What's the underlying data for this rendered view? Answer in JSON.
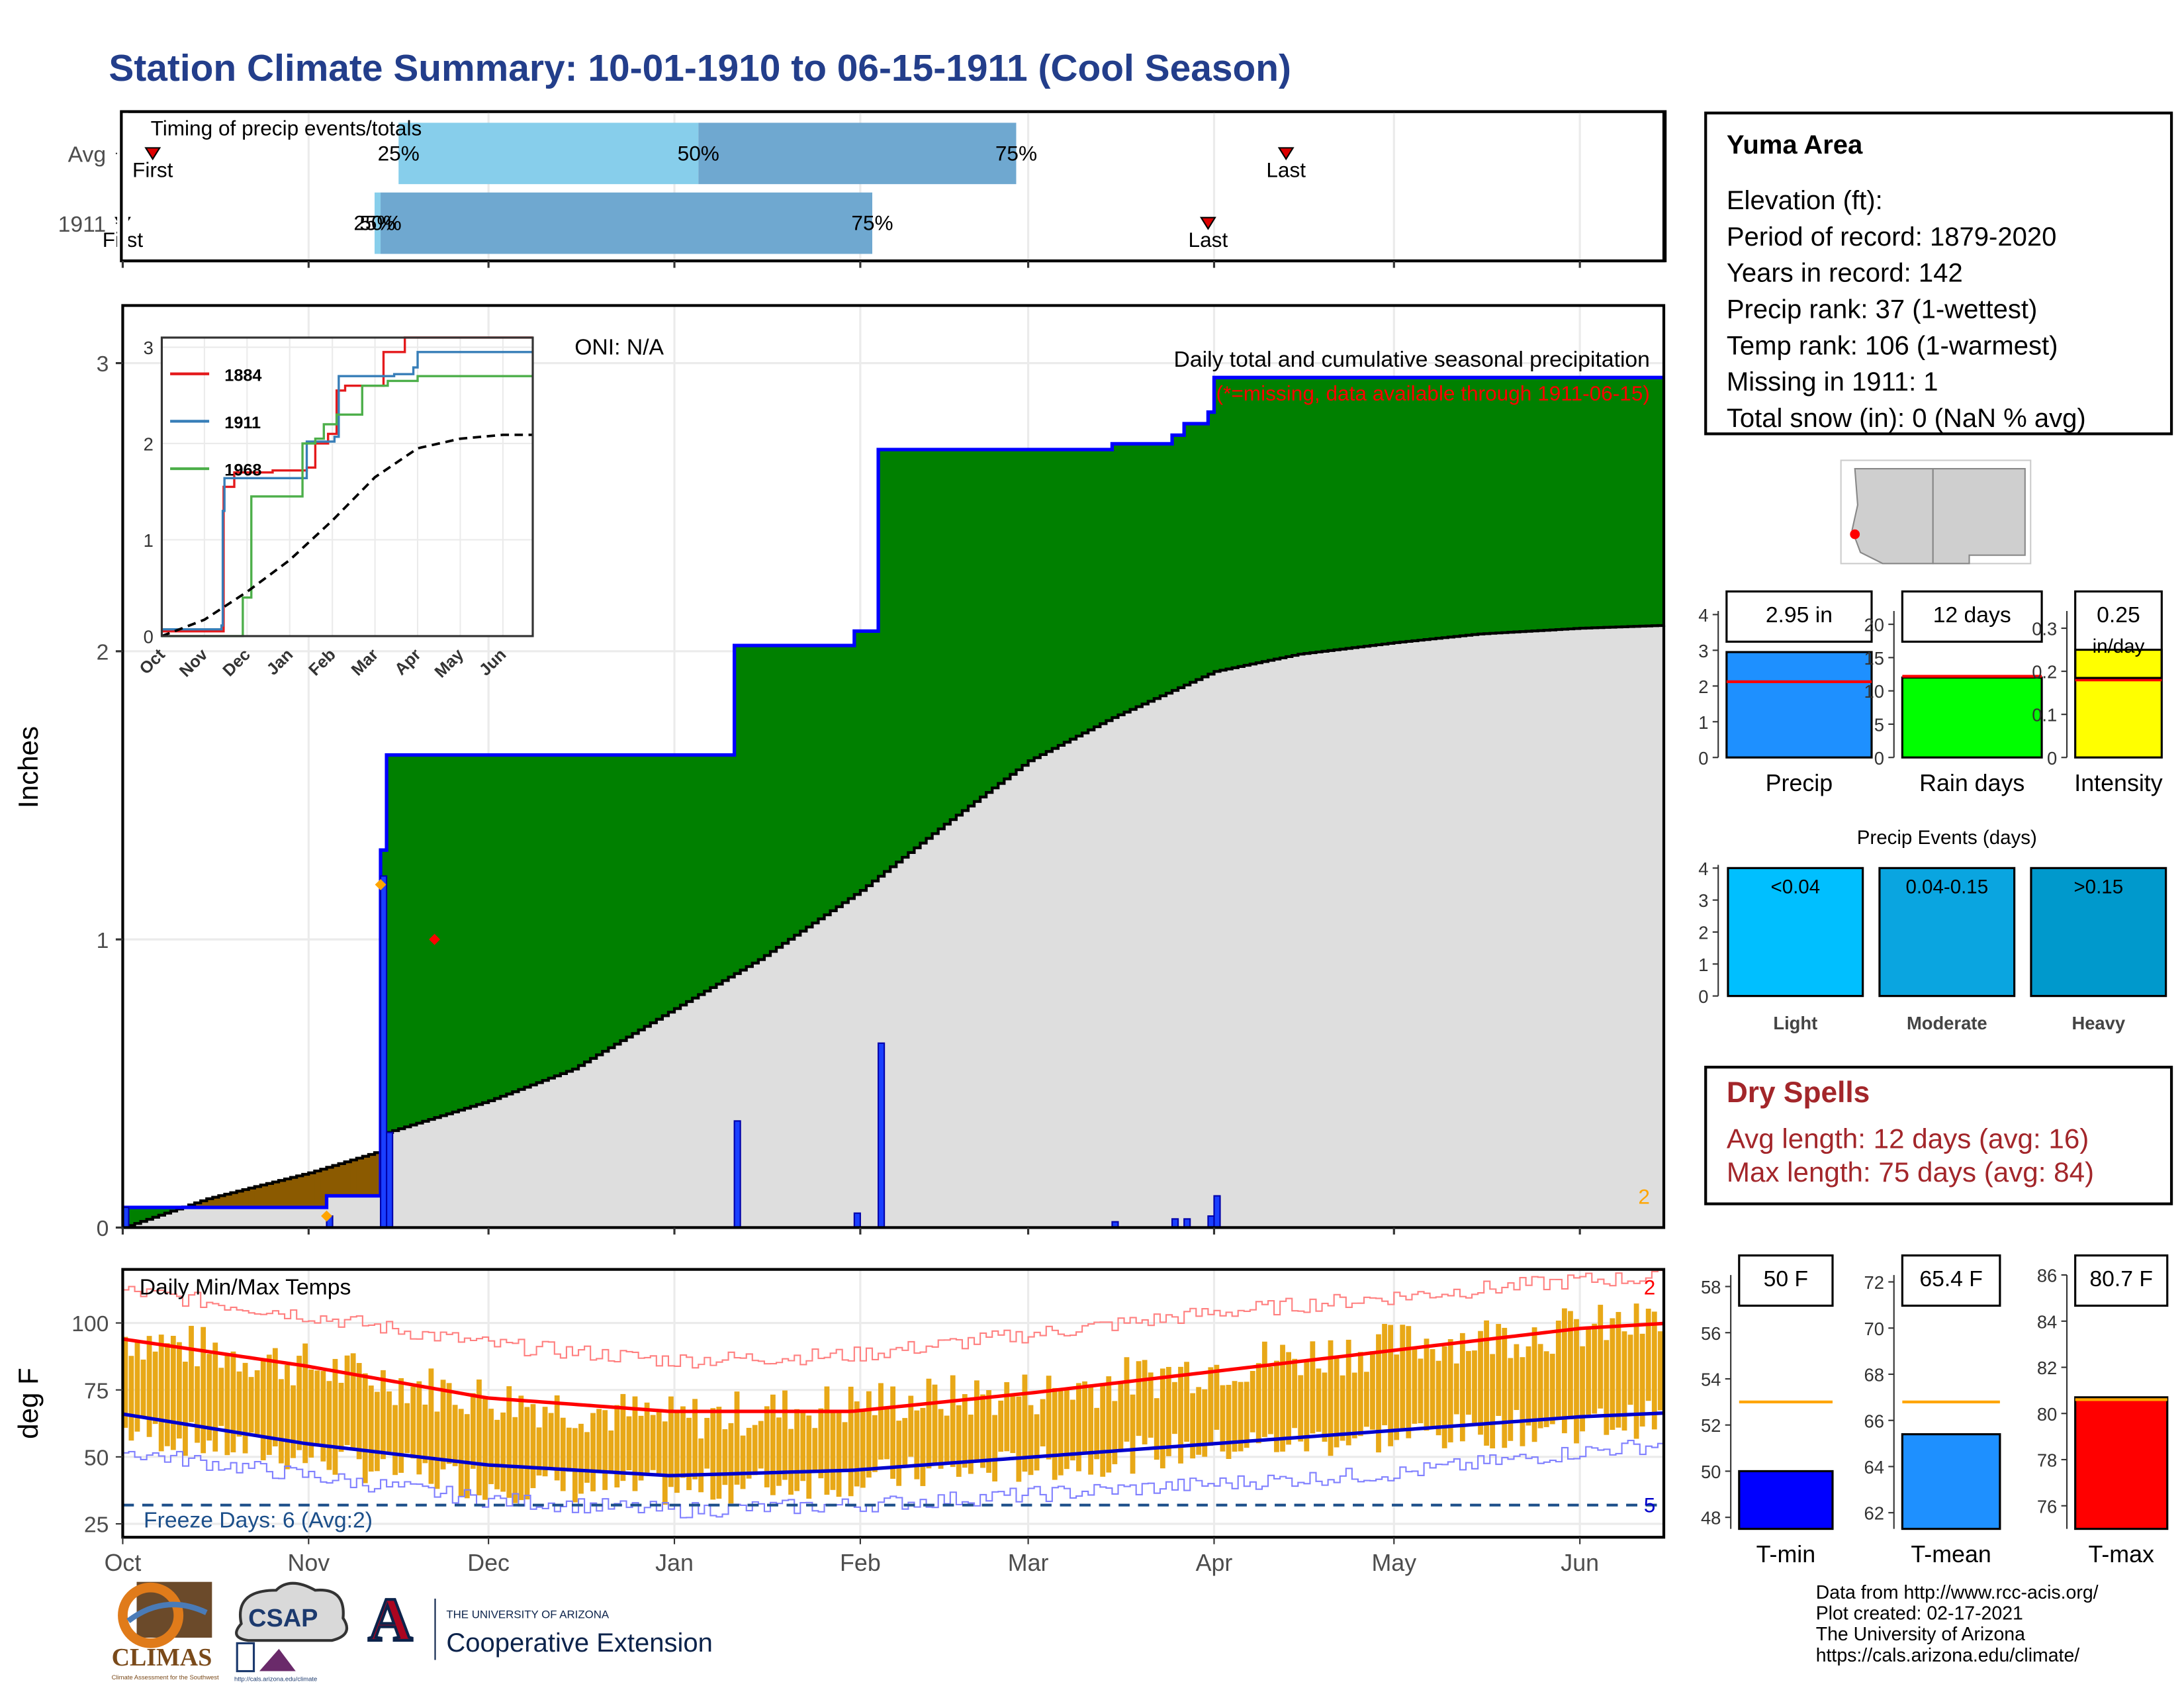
{
  "title": "Station Climate Summary: 10-01-1910 to 06-15-1911 (Cool Season)",
  "colors": {
    "title": "#233e8b",
    "surplus": "#008000",
    "deficit": "#8b5a00",
    "normal_fill": "#dedede",
    "precip_line": "#0000ff",
    "tmax": "#ff0000",
    "tmin": "#0000cc",
    "temp_bar": "#e8a817",
    "dry": "#a3262a"
  },
  "station_info": {
    "name": "Yuma Area",
    "lines": [
      "Elevation (ft):",
      "Period of record: 1879-2020",
      "Years in record: 142",
      "Precip rank: 37 (1-wettest)",
      "Temp rank: 106 (1-warmest)",
      "Missing in 1911: 1",
      "Total snow (in): 0 (NaN % avg)"
    ]
  },
  "dry_spells": {
    "title": "Dry Spells",
    "avg": "Avg length: 12 days (avg: 16)",
    "max": "Max length: 75 days (avg: 84)"
  },
  "credits": [
    "Data from http://www.rcc-acis.org/",
    "Plot created: 02-17-2021",
    "The University of Arizona",
    "https://cals.arizona.edu/climate/"
  ],
  "logos": {
    "climas": "CLIMAS",
    "climas_sub": "Climate Assessment for the Southwest",
    "csap": "CSAP",
    "csap_url": "http://cals.arizona.edu/climate",
    "ua_letter": "A",
    "ua_small": "THE UNIVERSITY OF ARIZONA",
    "ua_big": "Cooperative Extension"
  },
  "chart_data": [
    {
      "type": "bar",
      "id": "timing",
      "title": "Timing of precip events/totals",
      "rows": [
        {
          "label": "Avg",
          "first": "2023-10-06",
          "q25": "2023-11-16",
          "q50": "2024-01-05",
          "q75": "2024-02-27",
          "last": "2024-04-12",
          "first_label": "First",
          "last_label": "Last",
          "q_labels": [
            "25%",
            "50%",
            "75%"
          ]
        },
        {
          "label": "1911",
          "first": "1910-10-01",
          "q25": "1910-11-12",
          "q50": "1910-11-13",
          "q75": "1911-02-03",
          "last": "1911-03-31",
          "first_label": "First",
          "last_label": "Last",
          "q_labels": [
            "25%",
            "50%",
            "75%"
          ]
        }
      ]
    },
    {
      "type": "area",
      "id": "precip",
      "title": "Daily total and cumulative seasonal precipitation",
      "subtitle": "(*=missing, data available through 1911-06-15)",
      "oni": "ONI: N/A",
      "ylabel": "Inches",
      "ylim": [
        0,
        3.2
      ],
      "yticks": [
        0,
        1,
        2,
        3
      ],
      "xrange": [
        "1910-10-01",
        "1911-06-15"
      ],
      "xticks": [
        "Oct",
        "Nov",
        "Dec",
        "Jan",
        "Feb",
        "Mar",
        "Apr",
        "May",
        "Jun"
      ],
      "missing_count_label": "2",
      "cumulative_1911": [
        [
          "1910-10-01",
          0.07
        ],
        [
          "1910-11-03",
          0.07
        ],
        [
          "1910-11-04",
          0.11
        ],
        [
          "1910-11-12",
          0.11
        ],
        [
          "1910-11-13",
          1.31
        ],
        [
          "1910-11-14",
          1.64
        ],
        [
          "1911-01-10",
          1.64
        ],
        [
          "1911-01-11",
          2.02
        ],
        [
          "1911-01-30",
          2.02
        ],
        [
          "1911-01-31",
          2.07
        ],
        [
          "1911-02-03",
          2.07
        ],
        [
          "1911-02-04",
          2.7
        ],
        [
          "1911-03-14",
          2.7
        ],
        [
          "1911-03-15",
          2.72
        ],
        [
          "1911-03-24",
          2.72
        ],
        [
          "1911-03-25",
          2.75
        ],
        [
          "1911-03-27",
          2.79
        ],
        [
          "1911-03-31",
          2.83
        ],
        [
          "1911-04-01",
          2.95
        ],
        [
          "1911-06-15",
          2.95
        ]
      ],
      "cumulative_normal": [
        [
          "1910-10-01",
          0.0
        ],
        [
          "1910-10-15",
          0.1
        ],
        [
          "1910-11-01",
          0.19
        ],
        [
          "1910-11-12",
          0.26
        ],
        [
          "1910-11-14",
          0.33
        ],
        [
          "1910-12-01",
          0.44
        ],
        [
          "1910-12-15",
          0.55
        ],
        [
          "1911-01-01",
          0.76
        ],
        [
          "1911-01-15",
          0.93
        ],
        [
          "1911-02-01",
          1.17
        ],
        [
          "1911-02-15",
          1.4
        ],
        [
          "1911-03-01",
          1.62
        ],
        [
          "1911-03-15",
          1.77
        ],
        [
          "1911-04-01",
          1.93
        ],
        [
          "1911-04-15",
          1.99
        ],
        [
          "1911-05-01",
          2.03
        ],
        [
          "1911-05-15",
          2.06
        ],
        [
          "1911-06-01",
          2.08
        ],
        [
          "1911-06-15",
          2.09
        ]
      ],
      "daily_1911": [
        [
          "1910-10-01",
          0.07
        ],
        [
          "1910-11-04",
          0.04
        ],
        [
          "1910-11-13",
          1.22
        ],
        [
          "1910-11-14",
          0.33
        ],
        [
          "1911-01-11",
          0.37
        ],
        [
          "1911-01-31",
          0.05
        ],
        [
          "1911-02-04",
          0.64
        ],
        [
          "1911-03-15",
          0.02
        ],
        [
          "1911-03-25",
          0.03
        ],
        [
          "1911-03-27",
          0.03
        ],
        [
          "1911-03-31",
          0.04
        ],
        [
          "1911-04-01",
          0.11
        ]
      ],
      "markers": [
        {
          "date": "1910-11-04",
          "value": 0.04,
          "color": "orange"
        },
        {
          "date": "1910-11-13",
          "value": 1.19,
          "color": "orange"
        },
        {
          "date": "1910-11-22",
          "value": 1.0,
          "color": "red"
        }
      ]
    },
    {
      "type": "line",
      "id": "inset",
      "x_labels": [
        "Oct",
        "Nov",
        "Dec",
        "Jan",
        "Feb",
        "Mar",
        "Apr",
        "May",
        "Jun"
      ],
      "yticks": [
        0,
        1,
        2,
        3
      ],
      "ylim": [
        0,
        3.1
      ],
      "series": [
        {
          "name": "1884",
          "color": "#e41a1c",
          "values": [
            [
              0,
              0.05
            ],
            [
              1.3,
              0.05
            ],
            [
              1.45,
              1.55
            ],
            [
              1.7,
              1.7
            ],
            [
              2.6,
              1.72
            ],
            [
              3.4,
              1.75
            ],
            [
              3.6,
              2.0
            ],
            [
              3.9,
              2.1
            ],
            [
              4.1,
              2.55
            ],
            [
              4.3,
              2.6
            ],
            [
              4.8,
              2.6
            ],
            [
              5.2,
              2.95
            ],
            [
              5.7,
              3.1
            ],
            [
              6.4,
              3.1
            ],
            [
              9,
              3.1
            ]
          ]
        },
        {
          "name": "1911",
          "color": "#377eb8",
          "values": [
            [
              0,
              0.07
            ],
            [
              1.1,
              0.07
            ],
            [
              1.4,
              0.11
            ],
            [
              1.43,
              1.3
            ],
            [
              1.47,
              1.64
            ],
            [
              3.35,
              1.64
            ],
            [
              3.4,
              2.02
            ],
            [
              4.05,
              2.07
            ],
            [
              4.15,
              2.7
            ],
            [
              5.45,
              2.72
            ],
            [
              5.9,
              2.79
            ],
            [
              6.0,
              2.95
            ],
            [
              9,
              2.95
            ]
          ]
        },
        {
          "name": "1968",
          "color": "#4daf4a",
          "values": [
            [
              0,
              0
            ],
            [
              1.8,
              0
            ],
            [
              1.9,
              0.4
            ],
            [
              2.1,
              1.45
            ],
            [
              3.0,
              1.45
            ],
            [
              3.3,
              2.0
            ],
            [
              3.6,
              2.05
            ],
            [
              3.8,
              2.2
            ],
            [
              4.1,
              2.3
            ],
            [
              4.5,
              2.3
            ],
            [
              4.7,
              2.6
            ],
            [
              5.3,
              2.65
            ],
            [
              6.0,
              2.7
            ],
            [
              6.3,
              2.7
            ],
            [
              9,
              2.7
            ]
          ]
        },
        {
          "name": "Avg",
          "color": "#000000",
          "dashed": true,
          "values": [
            [
              0,
              0
            ],
            [
              1,
              0.17
            ],
            [
              2,
              0.46
            ],
            [
              3,
              0.79
            ],
            [
              4,
              1.2
            ],
            [
              5,
              1.65
            ],
            [
              6,
              1.95
            ],
            [
              7,
              2.05
            ],
            [
              8,
              2.09
            ],
            [
              9,
              2.09
            ]
          ]
        }
      ]
    },
    {
      "type": "bar",
      "id": "temps",
      "title": "Daily Min/Max Temps",
      "ylabel": "deg F",
      "ylim": [
        20,
        120
      ],
      "yticks": [
        25,
        50,
        75,
        100
      ],
      "xticks": [
        "Oct",
        "Nov",
        "Dec",
        "Jan",
        "Feb",
        "Mar",
        "Apr",
        "May",
        "Jun"
      ],
      "freeze_label": "Freeze Days: 6 (Avg:2)",
      "freeze_line": 32,
      "record_high_count": "2",
      "record_low_count": "5",
      "normal_max_monthly": [
        94,
        84,
        72,
        67,
        67,
        74,
        82,
        90,
        98,
        102
      ],
      "normal_min_monthly": [
        66,
        55,
        47,
        43,
        45,
        50,
        55,
        60,
        65,
        68
      ],
      "record_max_monthly": [
        112,
        103,
        92,
        86,
        88,
        96,
        104,
        110,
        116,
        118
      ],
      "record_min_monthly": [
        52,
        43,
        34,
        30,
        32,
        36,
        40,
        44,
        52,
        58
      ],
      "obs_max_monthly": [
        95,
        84,
        72,
        64,
        70,
        74,
        84,
        92,
        98,
        102
      ],
      "obs_min_monthly": [
        60,
        50,
        40,
        38,
        42,
        47,
        54,
        58,
        62,
        68
      ]
    },
    {
      "type": "bar",
      "id": "precip_total",
      "categories": [
        "Precip"
      ],
      "values": [
        2.95
      ],
      "normal": 2.12,
      "value_label": "2.95 in",
      "yticks": [
        0,
        1,
        2,
        3,
        4
      ],
      "ylim": [
        0,
        4.1
      ],
      "color": "#1e90ff"
    },
    {
      "type": "bar",
      "id": "rain_days",
      "categories": [
        "Rain days"
      ],
      "values": [
        12
      ],
      "normal": 12.2,
      "value_label": "12 days",
      "yticks": [
        0,
        5,
        10,
        15,
        20
      ],
      "ylim": [
        0,
        22
      ],
      "color": "#00ff00"
    },
    {
      "type": "bar",
      "id": "intensity",
      "categories": [
        "Intensity"
      ],
      "values": [
        0.25
      ],
      "normal": 0.18,
      "value_label": "0.25",
      "value_unit": "in/day",
      "yticks": [
        0.0,
        0.1,
        0.2,
        0.3
      ],
      "ylim": [
        0,
        0.34
      ],
      "color": "#ffff00"
    },
    {
      "type": "bar",
      "id": "precip_events",
      "title": "Precip Events (days)",
      "categories": [
        "Light",
        "Moderate",
        "Heavy"
      ],
      "bar_labels": [
        "<0.04",
        "0.04-0.15",
        ">0.15"
      ],
      "values": [
        4,
        4,
        4
      ],
      "yticks": [
        0,
        1,
        2,
        3,
        4
      ],
      "ylim": [
        0,
        4.1
      ],
      "colors": [
        "#00bfff",
        "#0aa5e0",
        "#0099cc"
      ]
    },
    {
      "type": "bar",
      "id": "tmin",
      "categories": [
        "T-min"
      ],
      "values": [
        50
      ],
      "normal": 53,
      "value_label": "50 F",
      "yticks": [
        48,
        50,
        52,
        54,
        56,
        58
      ],
      "ylim": [
        47.5,
        58.5
      ],
      "color": "#0000ff"
    },
    {
      "type": "bar",
      "id": "tmean",
      "categories": [
        "T-mean"
      ],
      "values": [
        65.4
      ],
      "normal": 66.8,
      "value_label": "65.4 F",
      "yticks": [
        62,
        64,
        66,
        68,
        70,
        72
      ],
      "ylim": [
        61.3,
        72.3
      ],
      "color": "#1e90ff"
    },
    {
      "type": "bar",
      "id": "tmax",
      "categories": [
        "T-max"
      ],
      "values": [
        80.7
      ],
      "normal": 80.6,
      "value_label": "80.7 F",
      "yticks": [
        76,
        78,
        80,
        82,
        84,
        86
      ],
      "ylim": [
        75,
        86
      ],
      "color": "#ff0000"
    }
  ]
}
